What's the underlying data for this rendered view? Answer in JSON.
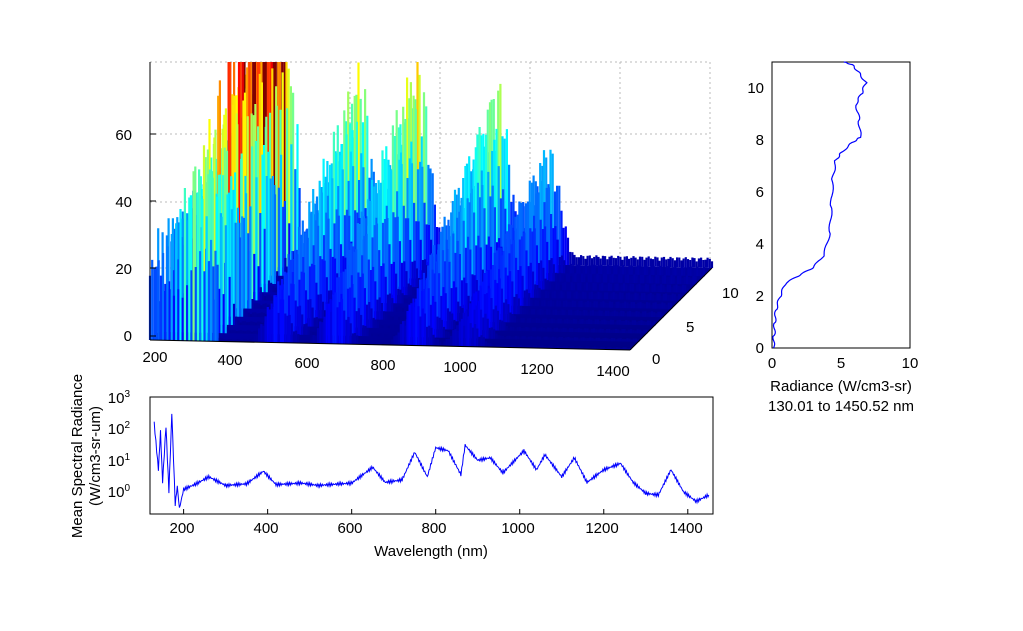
{
  "chart_data": [
    {
      "type": "surface",
      "x_ticks": [
        "200",
        "400",
        "600",
        "800",
        "1000",
        "1200",
        "1400"
      ],
      "y_ticks": [
        "0",
        "5",
        "10"
      ],
      "z_ticks": [
        "0",
        "20",
        "40",
        "60"
      ],
      "xlim": [
        130,
        1450
      ],
      "ylim": [
        0,
        11
      ],
      "zlim": [
        0,
        80
      ],
      "colormap": "jet",
      "grid": true,
      "peaks": [
        {
          "x": 250,
          "z": 80
        },
        {
          "x": 480,
          "z": 58
        },
        {
          "x": 640,
          "z": 62
        },
        {
          "x": 860,
          "z": 55
        },
        {
          "x": 1000,
          "z": 36
        }
      ]
    },
    {
      "type": "line",
      "xlabel": "Radiance (W/cm3-sr)",
      "subtitle": "130.01 to 1450.52 nm",
      "x_ticks": [
        "0",
        "5",
        "10"
      ],
      "y_ticks": [
        "0",
        "2",
        "4",
        "6",
        "8",
        "10"
      ],
      "xlim": [
        0,
        10
      ],
      "ylim": [
        0,
        11
      ],
      "color": "#0000ff",
      "series": [
        {
          "points": [
            [
              0.1,
              0
            ],
            [
              0.15,
              0.5
            ],
            [
              0.2,
              1.0
            ],
            [
              0.3,
              1.5
            ],
            [
              0.6,
              2.0
            ],
            [
              1.0,
              2.5
            ],
            [
              2.0,
              2.8
            ],
            [
              3.0,
              3.1
            ],
            [
              3.8,
              3.6
            ],
            [
              4.2,
              4.5
            ],
            [
              4.3,
              5.5
            ],
            [
              4.4,
              6.5
            ],
            [
              4.6,
              7.2
            ],
            [
              5.0,
              7.5
            ],
            [
              5.8,
              7.9
            ],
            [
              6.4,
              8.1
            ],
            [
              6.3,
              8.8
            ],
            [
              6.1,
              9.4
            ],
            [
              6.5,
              9.8
            ],
            [
              6.8,
              10.2
            ],
            [
              6.3,
              10.6
            ],
            [
              5.8,
              10.9
            ],
            [
              5.2,
              11.0
            ]
          ]
        }
      ]
    },
    {
      "type": "line",
      "xlabel": "Wavelength (nm)",
      "ylabel": "Mean Spectral Radiance (W/cm3-sr-um)",
      "x_ticks": [
        "200",
        "400",
        "600",
        "800",
        "1000",
        "1200",
        "1400"
      ],
      "y_ticks": [
        "10^0",
        "10^1",
        "10^2",
        "10^3"
      ],
      "xlim": [
        120,
        1460
      ],
      "ylim": [
        0.2,
        1000
      ],
      "yscale": "log",
      "color": "#0000ff",
      "series": [
        {
          "points": [
            [
              130,
              150
            ],
            [
              140,
              5
            ],
            [
              145,
              80
            ],
            [
              150,
              2
            ],
            [
              158,
              120
            ],
            [
              165,
              1
            ],
            [
              172,
              300
            ],
            [
              180,
              0.4
            ],
            [
              185,
              1.5
            ],
            [
              190,
              0.3
            ],
            [
              200,
              1.2
            ],
            [
              230,
              1.8
            ],
            [
              260,
              3.0
            ],
            [
              300,
              1.6
            ],
            [
              350,
              1.8
            ],
            [
              390,
              4.5
            ],
            [
              420,
              1.7
            ],
            [
              480,
              1.9
            ],
            [
              520,
              1.6
            ],
            [
              600,
              1.9
            ],
            [
              650,
              6
            ],
            [
              680,
              2.0
            ],
            [
              720,
              2.4
            ],
            [
              750,
              18
            ],
            [
              780,
              3
            ],
            [
              800,
              25
            ],
            [
              830,
              20
            ],
            [
              860,
              3.5
            ],
            [
              870,
              30
            ],
            [
              900,
              10
            ],
            [
              930,
              12
            ],
            [
              960,
              4
            ],
            [
              1010,
              20
            ],
            [
              1040,
              5
            ],
            [
              1060,
              15
            ],
            [
              1100,
              3
            ],
            [
              1130,
              12
            ],
            [
              1160,
              2
            ],
            [
              1200,
              5
            ],
            [
              1240,
              8
            ],
            [
              1270,
              2
            ],
            [
              1300,
              0.9
            ],
            [
              1330,
              0.8
            ],
            [
              1360,
              5
            ],
            [
              1390,
              1.0
            ],
            [
              1420,
              0.5
            ],
            [
              1450,
              0.8
            ]
          ]
        }
      ]
    }
  ]
}
